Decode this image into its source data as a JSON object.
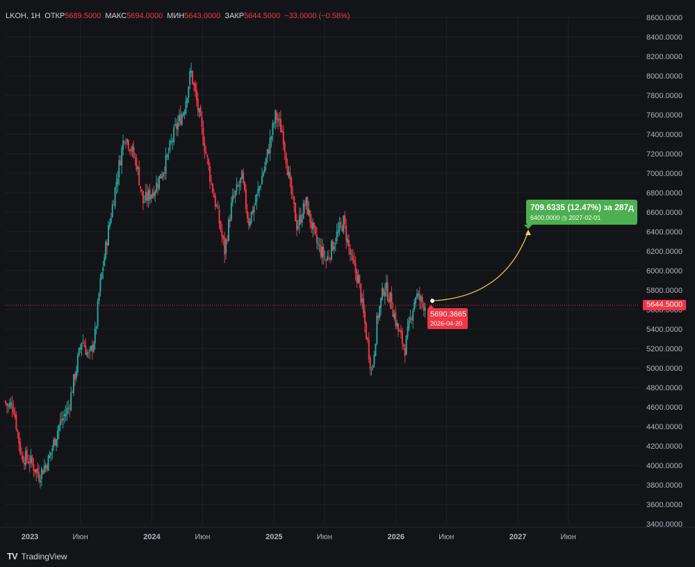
{
  "header": {
    "ticker": "LKOH, 1H",
    "open_label": "ОТКР",
    "open": "5689.5000",
    "high_label": "МАКС",
    "high": "5694.0000",
    "low_label": "МИН",
    "low": "5643.0000",
    "close_label": "ЗАКР",
    "close": "5644.5000",
    "change": "−33.0000 (−0.58%)"
  },
  "brand": {
    "logo": "TV",
    "name": "TradingView"
  },
  "last_price_label": "5644.5000",
  "projection": {
    "callout_line1": "709.6335 (12.47%) за 287д",
    "callout_line2": "6400.0000 ◷ 2027-02-01",
    "target_line1": "5690.3665",
    "target_line2": "2026-04-20"
  },
  "colors": {
    "up": "#26a69a",
    "down": "#f23645",
    "background": "#131418",
    "arc": "#f5d33b",
    "callout": "#4caf50"
  },
  "chart_data": {
    "type": "candlestick",
    "symbol": "LKOH",
    "interval": "1H",
    "yaxis": {
      "range": [
        3400,
        8600
      ],
      "ticks": [
        "8600.0000",
        "8400.0000",
        "8200.0000",
        "8000.0000",
        "7800.0000",
        "7600.0000",
        "7400.0000",
        "7200.0000",
        "7000.0000",
        "6800.0000",
        "6600.0000",
        "6400.0000",
        "6200.0000",
        "6000.0000",
        "5800.0000",
        "5600.0000",
        "5400.0000",
        "5200.0000",
        "5000.0000",
        "4800.0000",
        "4600.0000",
        "4400.0000",
        "4200.0000",
        "4000.0000",
        "3800.0000",
        "3600.0000",
        "3400.0000"
      ]
    },
    "xaxis": {
      "range": [
        "2022-10-20",
        "2027-12-31"
      ],
      "ticks": [
        {
          "label": "2023",
          "date": "2023-01-01"
        },
        {
          "label": "Июн",
          "date": "2023-06-01"
        },
        {
          "label": "2024",
          "date": "2024-01-01"
        },
        {
          "label": "Июн",
          "date": "2024-06-01"
        },
        {
          "label": "2025",
          "date": "2025-01-01"
        },
        {
          "label": "Июн",
          "date": "2025-06-01"
        },
        {
          "label": "2026",
          "date": "2026-01-01"
        },
        {
          "label": "Июн",
          "date": "2026-06-01"
        },
        {
          "label": "2027",
          "date": "2027-01-01"
        },
        {
          "label": "Июн",
          "date": "2027-06-01"
        }
      ]
    },
    "last_price": 5644.5,
    "path": [
      [
        "2022-10-20",
        4660
      ],
      [
        "2022-11-01",
        4600
      ],
      [
        "2022-11-15",
        4640
      ],
      [
        "2022-12-10",
        4100
      ],
      [
        "2023-01-05",
        4050
      ],
      [
        "2023-02-01",
        3900
      ],
      [
        "2023-03-01",
        4050
      ],
      [
        "2023-04-01",
        4400
      ],
      [
        "2023-05-01",
        4600
      ],
      [
        "2023-06-10",
        5300
      ],
      [
        "2023-07-01",
        5100
      ],
      [
        "2023-07-20",
        5350
      ],
      [
        "2023-08-01",
        5800
      ],
      [
        "2023-08-25",
        6350
      ],
      [
        "2023-09-20",
        6900
      ],
      [
        "2023-10-15",
        7400
      ],
      [
        "2023-10-30",
        7300
      ],
      [
        "2023-11-20",
        7100
      ],
      [
        "2023-12-10",
        6700
      ],
      [
        "2024-01-15",
        6850
      ],
      [
        "2024-02-15",
        7100
      ],
      [
        "2024-03-15",
        7450
      ],
      [
        "2024-04-10",
        7650
      ],
      [
        "2024-05-01",
        8050
      ],
      [
        "2024-05-20",
        7700
      ],
      [
        "2024-06-10",
        7300
      ],
      [
        "2024-07-01",
        6900
      ],
      [
        "2024-07-25",
        6500
      ],
      [
        "2024-08-10",
        6200
      ],
      [
        "2024-09-01",
        6700
      ],
      [
        "2024-10-01",
        6950
      ],
      [
        "2024-10-20",
        6500
      ],
      [
        "2024-11-10",
        6700
      ],
      [
        "2024-12-10",
        7100
      ],
      [
        "2025-01-10",
        7600
      ],
      [
        "2025-02-01",
        7400
      ],
      [
        "2025-02-20",
        6900
      ],
      [
        "2025-03-15",
        6450
      ],
      [
        "2025-04-10",
        6700
      ],
      [
        "2025-05-10",
        6300
      ],
      [
        "2025-06-10",
        6100
      ],
      [
        "2025-07-10",
        6350
      ],
      [
        "2025-08-01",
        6500
      ],
      [
        "2025-08-25",
        6100
      ],
      [
        "2025-09-15",
        5900
      ],
      [
        "2025-10-10",
        5300
      ],
      [
        "2025-10-25",
        4950
      ],
      [
        "2025-11-10",
        5500
      ],
      [
        "2025-12-01",
        5850
      ],
      [
        "2025-12-20",
        5700
      ],
      [
        "2026-01-10",
        5400
      ],
      [
        "2026-02-01",
        5200
      ],
      [
        "2026-02-20",
        5550
      ],
      [
        "2026-03-05",
        5750
      ],
      [
        "2026-03-20",
        5690
      ],
      [
        "2026-04-01",
        5644.5
      ]
    ],
    "projection": {
      "start": {
        "date": "2026-04-20",
        "value": 5690.3665
      },
      "end": {
        "date": "2027-02-01",
        "value": 6400.0
      },
      "change": 709.6335,
      "change_pct": 12.47,
      "days": 287
    }
  }
}
